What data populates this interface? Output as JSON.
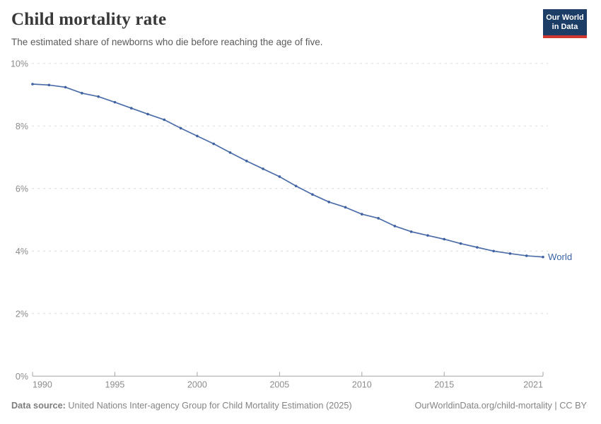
{
  "header": {
    "title": "Child mortality rate",
    "subtitle": "The estimated share of newborns who die before reaching the age of five.",
    "logo": {
      "line1": "Our World",
      "line2": "in Data",
      "bg_color": "#1c3e66",
      "accent_color": "#d13832"
    }
  },
  "chart_data": {
    "type": "line",
    "title": "Child mortality rate",
    "xlabel": "",
    "ylabel": "",
    "unit": "%",
    "xlim": [
      1990,
      2021
    ],
    "ylim": [
      0,
      10
    ],
    "grid": "horizontal-dashed",
    "legend_position": "end-of-line",
    "x_tick_labels": [
      1990,
      1995,
      2000,
      2005,
      2010,
      2015,
      2021
    ],
    "y_tick_values": [
      0,
      2,
      4,
      6,
      8,
      10
    ],
    "y_tick_labels": [
      "0%",
      "2%",
      "4%",
      "6%",
      "8%",
      "10%"
    ],
    "x": [
      1990,
      1991,
      1992,
      1993,
      1994,
      1995,
      1996,
      1997,
      1998,
      1999,
      2000,
      2001,
      2002,
      2003,
      2004,
      2005,
      2006,
      2007,
      2008,
      2009,
      2010,
      2011,
      2012,
      2013,
      2014,
      2015,
      2016,
      2017,
      2018,
      2019,
      2020,
      2021
    ],
    "series": [
      {
        "name": "World",
        "color": "#4c6da8",
        "marker_color": "#3f61a0",
        "values": [
          9.34,
          9.31,
          9.24,
          9.05,
          8.94,
          8.76,
          8.57,
          8.38,
          8.2,
          7.93,
          7.68,
          7.43,
          7.15,
          6.88,
          6.63,
          6.38,
          6.08,
          5.81,
          5.57,
          5.4,
          5.18,
          5.05,
          4.8,
          4.62,
          4.5,
          4.38,
          4.24,
          4.12,
          4.0,
          3.92,
          3.85,
          3.81
        ]
      }
    ]
  },
  "footer": {
    "source_label": "Data source:",
    "source_text": " United Nations Inter-agency Group for Child Mortality Estimation (2025)",
    "link_text": "OurWorldinData.org/child-mortality | CC BY"
  },
  "colors": {
    "gridline": "#dcdcdc",
    "axis_line": "#a5a5a5",
    "tick_label": "#8b8b8b",
    "series_label": "#3c64a4",
    "title": "#383838",
    "subtitle": "#5b5b5b",
    "footer": "#858585"
  }
}
